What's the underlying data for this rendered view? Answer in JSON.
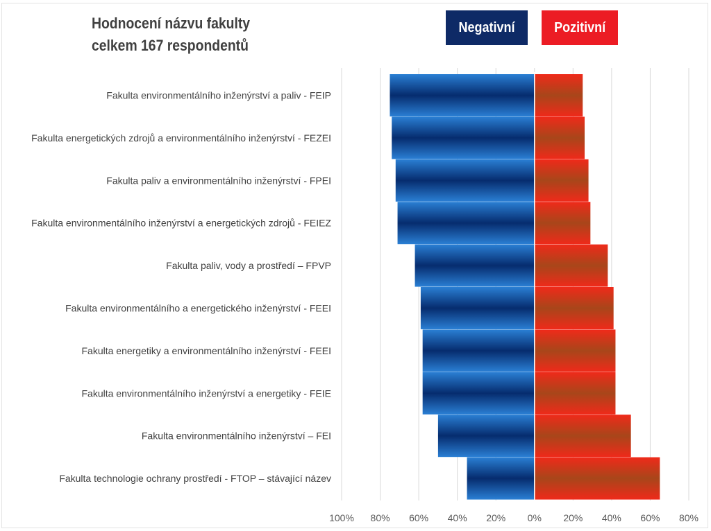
{
  "chart_data": {
    "type": "bar",
    "orientation": "horizontal-diverging",
    "title_lines": [
      "Hodnocení názvu fakulty",
      "celkem 167 respondentů"
    ],
    "categories": [
      "Fakulta environmentálního inženýrství a paliv - FEIP",
      "Fakulta energetických zdrojů a environmentálního inženýrství - FEZEI",
      "Fakulta paliv a environmentálního inženýrství - FPEI",
      "Fakulta environmentálního inženýrství a energetických zdrojů - FEIEZ",
      "Fakulta paliv, vody a prostředí – FPVP",
      "Fakulta environmentálního a energetického inženýrství - FEEI",
      "Fakulta energetiky a environmentálního inženýrství - FEEI",
      "Fakulta environmentálního inženýrství a energetiky - FEIE",
      "Fakulta environmentálního inženýrství – FEI",
      "Fakulta technologie ochrany prostředí - FTOP – stávající název"
    ],
    "series": [
      {
        "name": "Negativní",
        "color": "#0e2a66",
        "values": [
          75,
          74,
          72,
          71,
          62,
          59,
          58,
          58,
          50,
          35
        ]
      },
      {
        "name": "Pozitivní",
        "color": "#ec1c24",
        "values": [
          25,
          26,
          28,
          29,
          38,
          41,
          42,
          42,
          50,
          65
        ]
      }
    ],
    "xlim": [
      -100,
      80
    ],
    "xticks": [
      -100,
      -80,
      -60,
      -40,
      -20,
      0,
      20,
      40,
      60,
      80
    ],
    "xtick_labels": [
      "100%",
      "80%",
      "60%",
      "40%",
      "20%",
      "0%",
      "20%",
      "40%",
      "60%",
      "80%"
    ],
    "grid": true,
    "legend": "top-right"
  }
}
